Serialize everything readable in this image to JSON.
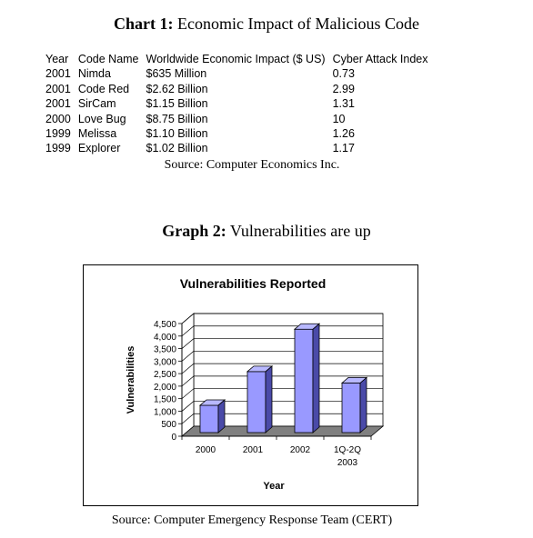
{
  "chart1": {
    "title_bold": "Chart 1:",
    "title_rest": "Economic Impact of Malicious Code",
    "columns": [
      "Year",
      "Code Name",
      "Worldwide Economic Impact ($ US)",
      "Cyber Attack Index"
    ],
    "rows": [
      [
        "2001",
        "Nimda",
        "$635 Million",
        "0.73"
      ],
      [
        "2001",
        "Code Red",
        "$2.62 Billion",
        "2.99"
      ],
      [
        "2001",
        "SirCam",
        "$1.15 Billion",
        "1.31"
      ],
      [
        "2000",
        "Love Bug",
        "$8.75 Billion",
        "10"
      ],
      [
        "1999",
        "Melissa",
        "$1.10 Billion",
        "1.26"
      ],
      [
        "1999",
        "Explorer",
        "$1.02 Billion",
        "1.17"
      ]
    ],
    "source": "Source: Computer Economics Inc."
  },
  "graph2": {
    "title_bold": "Graph 2:",
    "title_rest": "Vulnerabilities are up",
    "source": "Source: Computer Emergency Response Team (CERT)"
  },
  "chart_data": {
    "type": "bar",
    "title": "Vulnerabilities Reported",
    "xlabel": "Year",
    "ylabel": "Vulnerabilities",
    "categories": [
      "2000",
      "2001",
      "2002",
      "1Q-2Q 2003"
    ],
    "values": [
      1090,
      2437,
      4129,
      1982
    ],
    "ylim": [
      0,
      4500
    ],
    "yticks": [
      "0",
      "500",
      "1,000",
      "1,500",
      "2,000",
      "2,500",
      "3,000",
      "3,500",
      "4,000",
      "4,500"
    ],
    "grid": true,
    "legend": "none",
    "colors": {
      "bar": "#9999ff",
      "bar_side": "#4a4aa8",
      "bar_top": "#b8b8ff",
      "floor": "#808080"
    }
  }
}
